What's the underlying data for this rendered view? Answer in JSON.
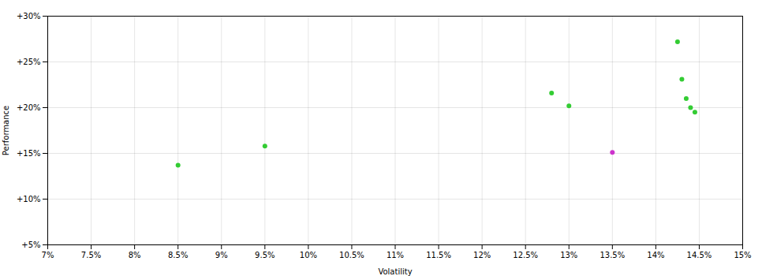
{
  "chart_data": {
    "type": "scatter",
    "xlabel": "Volatility",
    "ylabel": "Performance",
    "xlim": [
      0.07,
      0.15
    ],
    "ylim": [
      0.05,
      0.3
    ],
    "xticks": [
      {
        "value": 0.07,
        "label": "7%"
      },
      {
        "value": 0.075,
        "label": "7.5%"
      },
      {
        "value": 0.08,
        "label": "8%"
      },
      {
        "value": 0.085,
        "label": "8.5%"
      },
      {
        "value": 0.09,
        "label": "9%"
      },
      {
        "value": 0.095,
        "label": "9.5%"
      },
      {
        "value": 0.1,
        "label": "10%"
      },
      {
        "value": 0.105,
        "label": "10.5%"
      },
      {
        "value": 0.11,
        "label": "11%"
      },
      {
        "value": 0.115,
        "label": "11.5%"
      },
      {
        "value": 0.12,
        "label": "12%"
      },
      {
        "value": 0.125,
        "label": "12.5%"
      },
      {
        "value": 0.13,
        "label": "13%"
      },
      {
        "value": 0.135,
        "label": "13.5%"
      },
      {
        "value": 0.14,
        "label": "14%"
      },
      {
        "value": 0.145,
        "label": "14.5%"
      },
      {
        "value": 0.15,
        "label": "15%"
      }
    ],
    "yticks": [
      {
        "value": 0.05,
        "label": "+5%"
      },
      {
        "value": 0.1,
        "label": "+10%"
      },
      {
        "value": 0.15,
        "label": "+15%"
      },
      {
        "value": 0.2,
        "label": "+20%"
      },
      {
        "value": 0.25,
        "label": "+25%"
      },
      {
        "value": 0.3,
        "label": "+30%"
      }
    ],
    "grid": true,
    "series": [
      {
        "color": "#33cc33",
        "x": [
          0.085,
          0.095,
          0.128,
          0.13,
          0.1425,
          0.143,
          0.1435,
          0.144,
          0.1445
        ],
        "values": [
          0.137,
          0.158,
          0.216,
          0.202,
          0.272,
          0.231,
          0.21,
          0.2,
          0.195
        ]
      },
      {
        "color": "#cc33cc",
        "x": [
          0.135
        ],
        "values": [
          0.151
        ]
      }
    ]
  }
}
